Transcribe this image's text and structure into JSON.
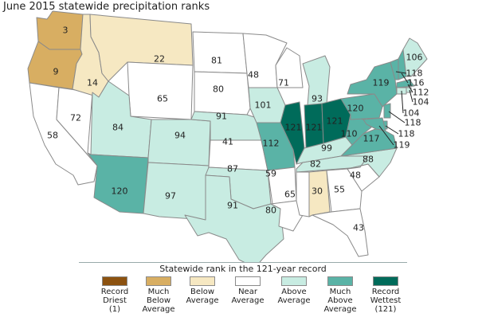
{
  "title": "June 2015 statewide precipitation ranks",
  "legend": {
    "title": "Statewide rank in the 121-year record",
    "items": [
      {
        "key": "record-driest",
        "label": "Record\nDriest\n(1)",
        "color": "#8c5210"
      },
      {
        "key": "much-below",
        "label": "Much\nBelow\nAverage",
        "color": "#d8ae62"
      },
      {
        "key": "below",
        "label": "Below\nAverage",
        "color": "#f6e8c2"
      },
      {
        "key": "near",
        "label": "Near\nAverage",
        "color": "#ffffff"
      },
      {
        "key": "above",
        "label": "Above\nAverage",
        "color": "#c8ece2"
      },
      {
        "key": "much-above",
        "label": "Much\nAbove\nAverage",
        "color": "#5ab3a6"
      },
      {
        "key": "record-wettest",
        "label": "Record\nWettest\n(121)",
        "color": "#006b5a"
      }
    ]
  },
  "states": [
    {
      "id": "WA",
      "rank": "3",
      "category": "much-below"
    },
    {
      "id": "OR",
      "rank": "9",
      "category": "much-below"
    },
    {
      "id": "CA",
      "rank": "58",
      "category": "near"
    },
    {
      "id": "NV",
      "rank": "72",
      "category": "near"
    },
    {
      "id": "ID",
      "rank": "14",
      "category": "below"
    },
    {
      "id": "MT",
      "rank": "22",
      "category": "below"
    },
    {
      "id": "WY",
      "rank": "65",
      "category": "near"
    },
    {
      "id": "UT",
      "rank": "84",
      "category": "above"
    },
    {
      "id": "AZ",
      "rank": "120",
      "category": "much-above"
    },
    {
      "id": "CO",
      "rank": "94",
      "category": "above"
    },
    {
      "id": "NM",
      "rank": "97",
      "category": "above"
    },
    {
      "id": "ND",
      "rank": "81",
      "category": "near"
    },
    {
      "id": "SD",
      "rank": "80",
      "category": "near"
    },
    {
      "id": "NE",
      "rank": "91",
      "category": "above"
    },
    {
      "id": "KS",
      "rank": "41",
      "category": "near"
    },
    {
      "id": "OK",
      "rank": "87",
      "category": "above"
    },
    {
      "id": "TX",
      "rank": "91",
      "category": "above"
    },
    {
      "id": "MN",
      "rank": "48",
      "category": "near"
    },
    {
      "id": "IA",
      "rank": "101",
      "category": "above"
    },
    {
      "id": "MO",
      "rank": "112",
      "category": "much-above"
    },
    {
      "id": "AR",
      "rank": "59",
      "category": "near"
    },
    {
      "id": "LA",
      "rank": "80",
      "category": "near"
    },
    {
      "id": "WI",
      "rank": "71",
      "category": "near"
    },
    {
      "id": "IL",
      "rank": "121",
      "category": "record-wettest"
    },
    {
      "id": "MI",
      "rank": "93",
      "category": "above"
    },
    {
      "id": "IN",
      "rank": "121",
      "category": "record-wettest"
    },
    {
      "id": "OH",
      "rank": "121",
      "category": "record-wettest"
    },
    {
      "id": "KY",
      "rank": "99",
      "category": "above"
    },
    {
      "id": "TN",
      "rank": "82",
      "category": "above"
    },
    {
      "id": "MS",
      "rank": "65",
      "category": "near"
    },
    {
      "id": "AL",
      "rank": "30",
      "category": "below"
    },
    {
      "id": "GA",
      "rank": "55",
      "category": "near"
    },
    {
      "id": "FL",
      "rank": "43",
      "category": "near"
    },
    {
      "id": "SC",
      "rank": "48",
      "category": "near"
    },
    {
      "id": "NC",
      "rank": "88",
      "category": "above"
    },
    {
      "id": "VA",
      "rank": "117",
      "category": "much-above"
    },
    {
      "id": "WV",
      "rank": "110",
      "category": "much-above"
    },
    {
      "id": "PA",
      "rank": "120",
      "category": "much-above"
    },
    {
      "id": "NY",
      "rank": "119",
      "category": "much-above"
    },
    {
      "id": "VT",
      "rank": "118",
      "category": "much-above"
    },
    {
      "id": "NH",
      "rank": "116",
      "category": "much-above"
    },
    {
      "id": "ME",
      "rank": "106",
      "category": "above"
    },
    {
      "id": "MA",
      "rank": "112",
      "category": "much-above"
    },
    {
      "id": "RI",
      "rank": "104",
      "category": "above"
    },
    {
      "id": "CT",
      "rank": "104",
      "category": "above"
    },
    {
      "id": "NJ",
      "rank": "118",
      "category": "much-above"
    },
    {
      "id": "DE",
      "rank": "118",
      "category": "much-above"
    },
    {
      "id": "MD",
      "rank": "119",
      "category": "much-above"
    }
  ]
}
